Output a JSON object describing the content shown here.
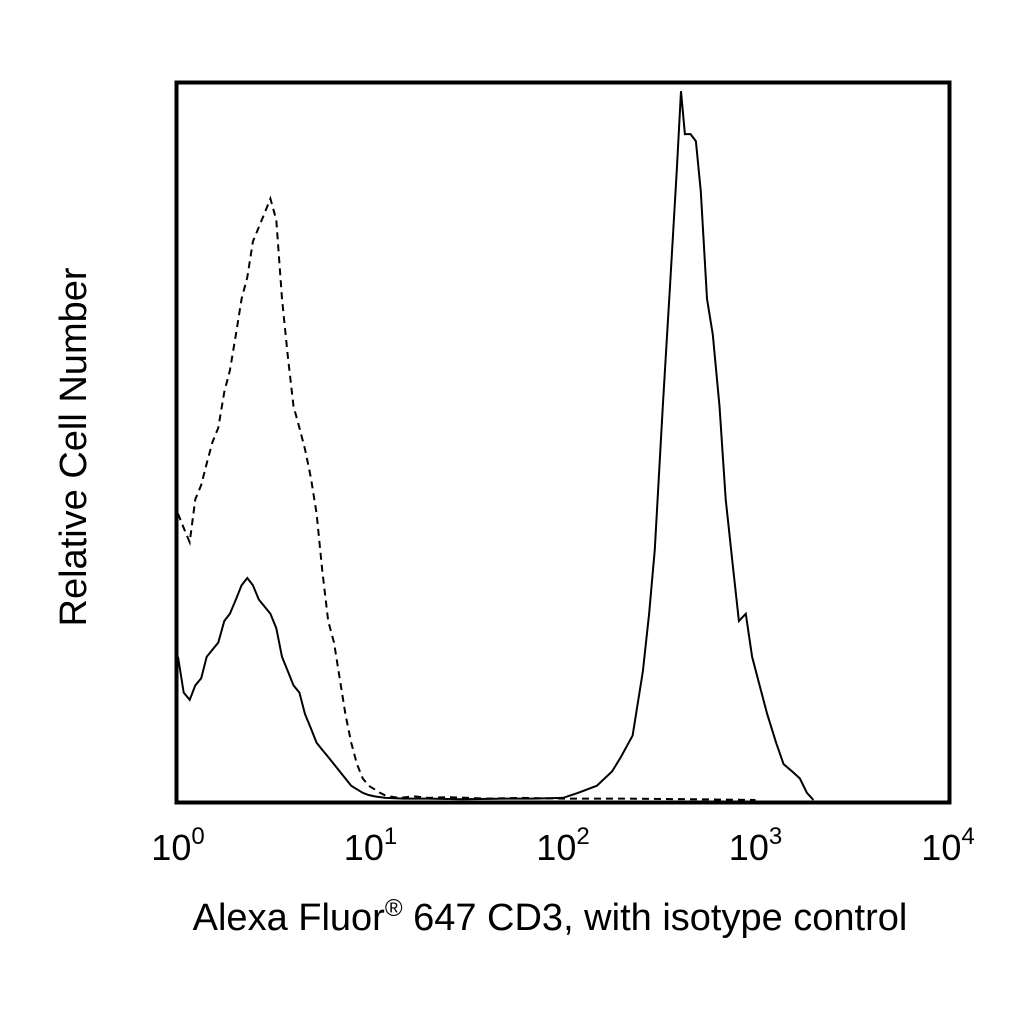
{
  "chart_data": {
    "type": "line",
    "title": "",
    "xlabel_parts": {
      "main": "Alexa Fluor",
      "reg": "®",
      "rest": " 647 CD3, with isotype control"
    },
    "ylabel": "Relative Cell Number",
    "x_scale": "log",
    "xlim": [
      1,
      10000
    ],
    "ylim": [
      0,
      100
    ],
    "grid": false,
    "legend": "none",
    "x_ticks": [
      {
        "base": "10",
        "exp": "0",
        "value": 1
      },
      {
        "base": "10",
        "exp": "1",
        "value": 10
      },
      {
        "base": "10",
        "exp": "2",
        "value": 100
      },
      {
        "base": "10",
        "exp": "3",
        "value": 1000
      },
      {
        "base": "10",
        "exp": "4",
        "value": 10000
      }
    ],
    "series": [
      {
        "style": "dashed",
        "color": "#000000",
        "x": [
          1.0,
          1.07,
          1.15,
          1.23,
          1.32,
          1.41,
          1.51,
          1.62,
          1.74,
          1.86,
          2.0,
          2.14,
          2.29,
          2.45,
          2.63,
          2.82,
          3.02,
          3.24,
          3.47,
          3.72,
          3.98,
          4.27,
          4.57,
          4.9,
          5.25,
          5.62,
          6.03,
          6.46,
          6.92,
          7.41,
          7.94,
          8.51,
          9.12,
          9.77,
          10.5,
          11.2,
          12.0,
          14.0,
          17.0,
          20.0,
          25.0,
          40.0,
          60.0,
          100.0,
          200.0,
          500.0,
          1000.0
        ],
        "values": [
          40,
          38,
          36,
          42,
          44,
          47,
          50,
          52,
          57,
          60,
          65,
          70,
          73,
          78,
          80,
          82,
          84,
          81,
          70,
          62,
          55,
          52,
          49,
          45,
          40,
          32,
          25,
          22,
          17,
          12,
          8,
          5,
          3,
          2,
          1.5,
          1,
          0.6,
          0.3,
          0.5,
          0.3,
          0.4,
          0.2,
          0.3,
          0.2,
          0.2,
          0.1,
          0
        ]
      },
      {
        "style": "solid",
        "color": "#000000",
        "x": [
          1.0,
          1.07,
          1.15,
          1.23,
          1.32,
          1.41,
          1.51,
          1.62,
          1.74,
          1.86,
          2.0,
          2.14,
          2.29,
          2.45,
          2.63,
          2.82,
          3.02,
          3.24,
          3.47,
          3.72,
          3.98,
          4.27,
          4.57,
          4.9,
          5.25,
          5.62,
          6.03,
          6.46,
          6.92,
          7.41,
          7.94,
          8.51,
          9.12,
          9.77,
          10.5,
          12.0,
          15.0,
          20.0,
          30.0,
          50.0,
          70.0,
          100.0,
          120.0,
          150.0,
          180.0,
          200.0,
          230.0,
          260.0,
          280.0,
          300.0,
          330.0,
          360.0,
          390.0,
          410.0,
          430.0,
          460.0,
          490.0,
          520.0,
          560.0,
          600.0,
          650.0,
          700.0,
          760.0,
          820.0,
          890.0,
          960.0,
          1050.0,
          1150.0,
          1280.0,
          1400.0,
          1550.0,
          1700.0,
          1850.0,
          2000.0
        ],
        "values": [
          20,
          15,
          14,
          16,
          17,
          20,
          21,
          22,
          25,
          26,
          28,
          30,
          31,
          30,
          28,
          27,
          26,
          24,
          20,
          18,
          16,
          15,
          12,
          10,
          8,
          7,
          6,
          5,
          4,
          3,
          2,
          1.5,
          1,
          0.7,
          0.5,
          0.3,
          0.2,
          0.2,
          0.1,
          0.2,
          0.2,
          0.3,
          1,
          2,
          4,
          6,
          9,
          18,
          26,
          35,
          55,
          72,
          88,
          99,
          93,
          93,
          92,
          85,
          70,
          65,
          55,
          42,
          33,
          25,
          26,
          20,
          16,
          12,
          8,
          5,
          4,
          3,
          1,
          0
        ]
      }
    ]
  }
}
